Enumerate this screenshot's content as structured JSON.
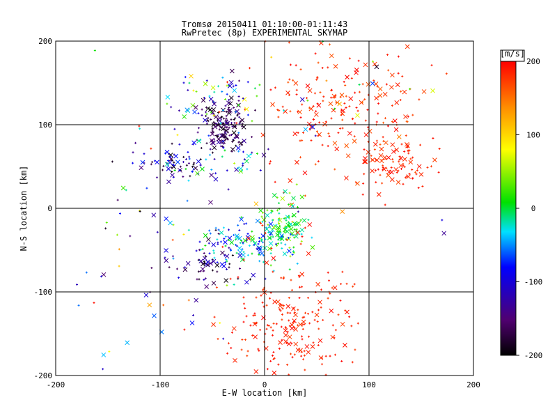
{
  "chart_data": {
    "type": "scatter",
    "title_line1": "Tromsø 20150411 01:10:00-01:11:43",
    "title_line2": "RwPretec (8p) EXPERIMENTAL SKYMAP",
    "xlabel": "E-W location [km]",
    "ylabel": "N-S location [km]",
    "xlim": [
      -200,
      200
    ],
    "ylim": [
      -200,
      200
    ],
    "xticks": [
      -200,
      -100,
      0,
      100,
      200
    ],
    "yticks": [
      -200,
      -100,
      0,
      100,
      200
    ],
    "grid": true,
    "colorbar": {
      "title": "[m/s]",
      "range": [
        -200,
        200
      ],
      "ticks": [
        200,
        100,
        0,
        -100,
        -200
      ],
      "colormap": "black-purple-blue-cyan-green-yellow-red"
    },
    "markers": [
      "plus (small)",
      "x (larger)"
    ],
    "clusters": [
      {
        "cx": -40,
        "cy": 95,
        "sx": 10,
        "sy": 15,
        "n": 160,
        "vmin": -200,
        "vmax": -120
      },
      {
        "cx": -45,
        "cy": 130,
        "sx": 20,
        "sy": 20,
        "n": 60,
        "vmin": -180,
        "vmax": 120
      },
      {
        "cx": -85,
        "cy": 52,
        "sx": 15,
        "sy": 12,
        "n": 70,
        "vmin": -200,
        "vmax": -60
      },
      {
        "cx": -40,
        "cy": 55,
        "sx": 20,
        "sy": 20,
        "n": 40,
        "vmin": -150,
        "vmax": 40
      },
      {
        "cx": 80,
        "cy": 120,
        "sx": 40,
        "sy": 45,
        "n": 230,
        "vmin": 160,
        "vmax": 200
      },
      {
        "cx": 120,
        "cy": 55,
        "sx": 18,
        "sy": 15,
        "n": 80,
        "vmin": 170,
        "vmax": 200
      },
      {
        "cx": 15,
        "cy": -20,
        "sx": 12,
        "sy": 18,
        "n": 130,
        "vmin": -30,
        "vmax": 60
      },
      {
        "cx": -15,
        "cy": -45,
        "sx": 25,
        "sy": 15,
        "n": 120,
        "vmin": -110,
        "vmax": 20
      },
      {
        "cx": -55,
        "cy": -65,
        "sx": 20,
        "sy": 15,
        "n": 60,
        "vmin": -200,
        "vmax": -80
      },
      {
        "cx": 25,
        "cy": -130,
        "sx": 30,
        "sy": 40,
        "n": 230,
        "vmin": 170,
        "vmax": 200
      },
      {
        "cx": -120,
        "cy": -70,
        "sx": 40,
        "sy": 60,
        "n": 40,
        "vmin": -200,
        "vmax": 200
      },
      {
        "cx": 0,
        "cy": 100,
        "sx": 90,
        "sy": 60,
        "n": 50,
        "vmin": -200,
        "vmax": 200
      }
    ]
  }
}
